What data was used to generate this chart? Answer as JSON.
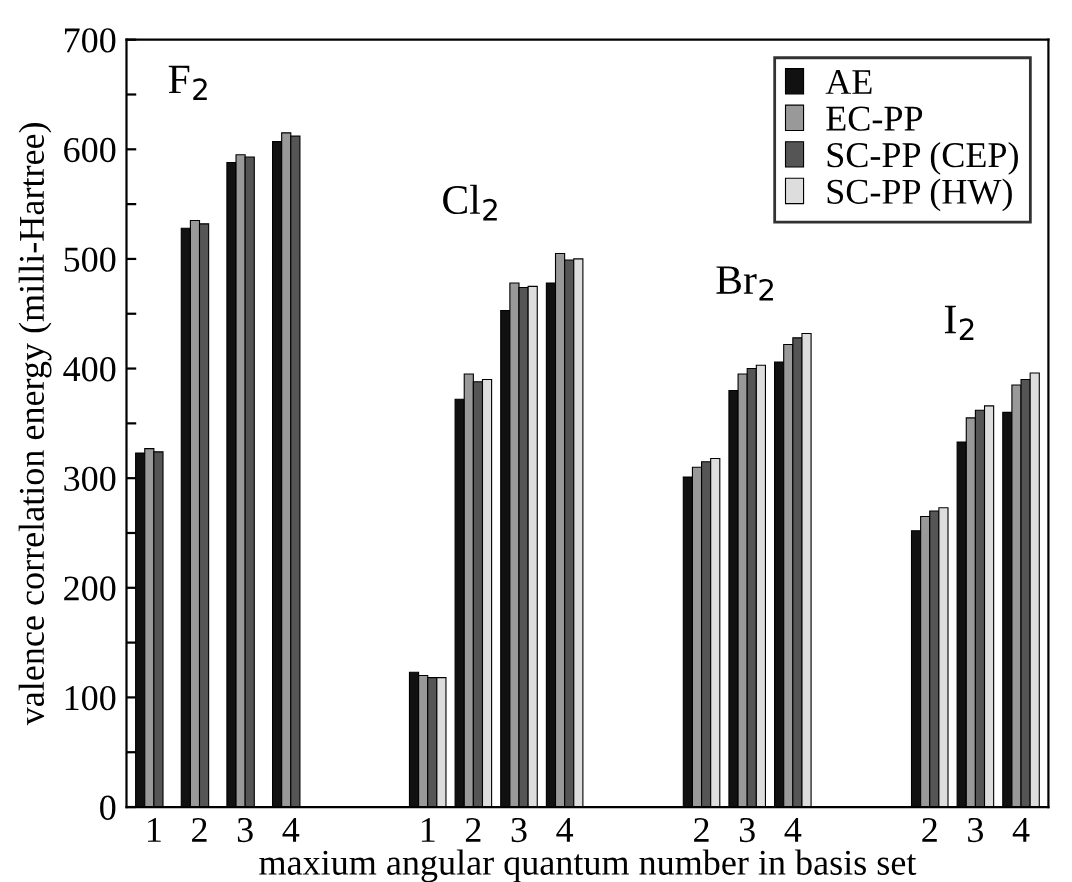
{
  "chart_data": {
    "type": "bar",
    "xlabel": "maxium angular quantum number in basis set",
    "ylabel": "valence correlation energy (milli-Hartree)",
    "categories": [
      "1",
      "2",
      "3",
      "4",
      null,
      null,
      "1",
      "2",
      "3",
      "4",
      null,
      null,
      "2",
      "3",
      "4",
      null,
      null,
      "2",
      "3",
      "4"
    ],
    "series": [
      {
        "name": "AE",
        "color": "#111111",
        "values": [
          323,
          528,
          588,
          607,
          null,
          null,
          123,
          372,
          453,
          478,
          null,
          null,
          301,
          380,
          406,
          null,
          null,
          252,
          333,
          360
        ]
      },
      {
        "name": "EC-PP",
        "color": "#999999",
        "values": [
          327,
          535,
          595,
          615,
          null,
          null,
          120,
          395,
          478,
          505,
          null,
          null,
          310,
          395,
          422,
          null,
          null,
          265,
          355,
          385
        ]
      },
      {
        "name": "SC-PP (CEP)",
        "color": "#555555",
        "values": [
          324,
          532,
          593,
          612,
          null,
          null,
          118,
          388,
          474,
          499,
          null,
          null,
          315,
          400,
          428,
          null,
          null,
          270,
          362,
          390
        ]
      },
      {
        "name": "SC-PP (HW)",
        "color": "#dddddd",
        "values": [
          null,
          null,
          null,
          null,
          null,
          null,
          118,
          390,
          475,
          500,
          null,
          null,
          318,
          403,
          432,
          null,
          null,
          273,
          366,
          396
        ]
      }
    ],
    "annotations": [
      "F$_{2}$",
      "Cl$_{2}$",
      "Br$_{2}$",
      "I$_{2}$"
    ],
    "ylim": [
      0,
      700
    ],
    "yticks": [
      0,
      {
        "value": 50,
        "label": null
      },
      100,
      {
        "value": 150,
        "label": null
      },
      200,
      {
        "value": 250,
        "label": null
      },
      300,
      {
        "value": 350,
        "label": null
      },
      400,
      {
        "value": 450,
        "label": null
      },
      500,
      {
        "value": 550,
        "label": null
      },
      600,
      {
        "value": 650,
        "label": null
      },
      700
    ],
    "grid": false,
    "legend": "top right"
  }
}
